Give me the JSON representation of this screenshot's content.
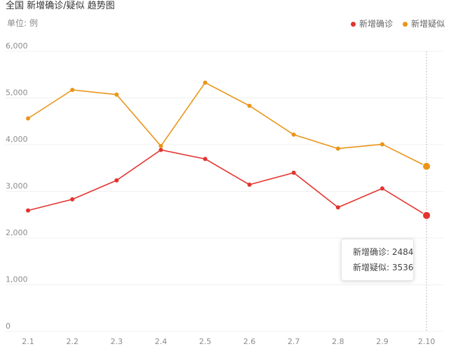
{
  "header": {
    "title": "全国 新增确诊/疑似 趋势图",
    "unit": "单位: 例"
  },
  "colors": {
    "confirmed": "#e3342f",
    "suspected": "#ea9518",
    "grid": "#f0f0f0",
    "axis_text": "#8c8c8c",
    "crosshair": "#bfbfbf"
  },
  "legend": {
    "items": [
      {
        "label": "新增确诊",
        "color": "#e3342f"
      },
      {
        "label": "新增疑似",
        "color": "#ea9518"
      }
    ]
  },
  "tooltip": {
    "rows": [
      {
        "label": "新增确诊: 2484",
        "color": "#e3342f"
      },
      {
        "label": "新增疑似: 3536",
        "color": "#ea9518"
      }
    ],
    "active_category": "2.10"
  },
  "chart_data": {
    "type": "line",
    "title": "全国 新增确诊/疑似 趋势图",
    "categories": [
      "2.1",
      "2.2",
      "2.3",
      "2.4",
      "2.5",
      "2.6",
      "2.7",
      "2.8",
      "2.9",
      "2.10"
    ],
    "series": [
      {
        "name": "新增确诊",
        "color": "#e3342f",
        "values": [
          2590,
          2829,
          3235,
          3887,
          3694,
          3143,
          3399,
          2656,
          3062,
          2484
        ]
      },
      {
        "name": "新增疑似",
        "color": "#ea9518",
        "values": [
          4562,
          5173,
          5072,
          3971,
          5328,
          4833,
          4214,
          3916,
          4008,
          3536
        ]
      }
    ],
    "ylim": [
      0,
      6000
    ],
    "yticks": [
      0,
      1000,
      2000,
      3000,
      4000,
      5000,
      6000
    ],
    "ytick_labels": [
      "0",
      "1,000",
      "2,000",
      "3,000",
      "4,000",
      "5,000",
      "6,000"
    ],
    "ylabel": "单位: 例",
    "grid": true,
    "legend_position": "top-right"
  }
}
